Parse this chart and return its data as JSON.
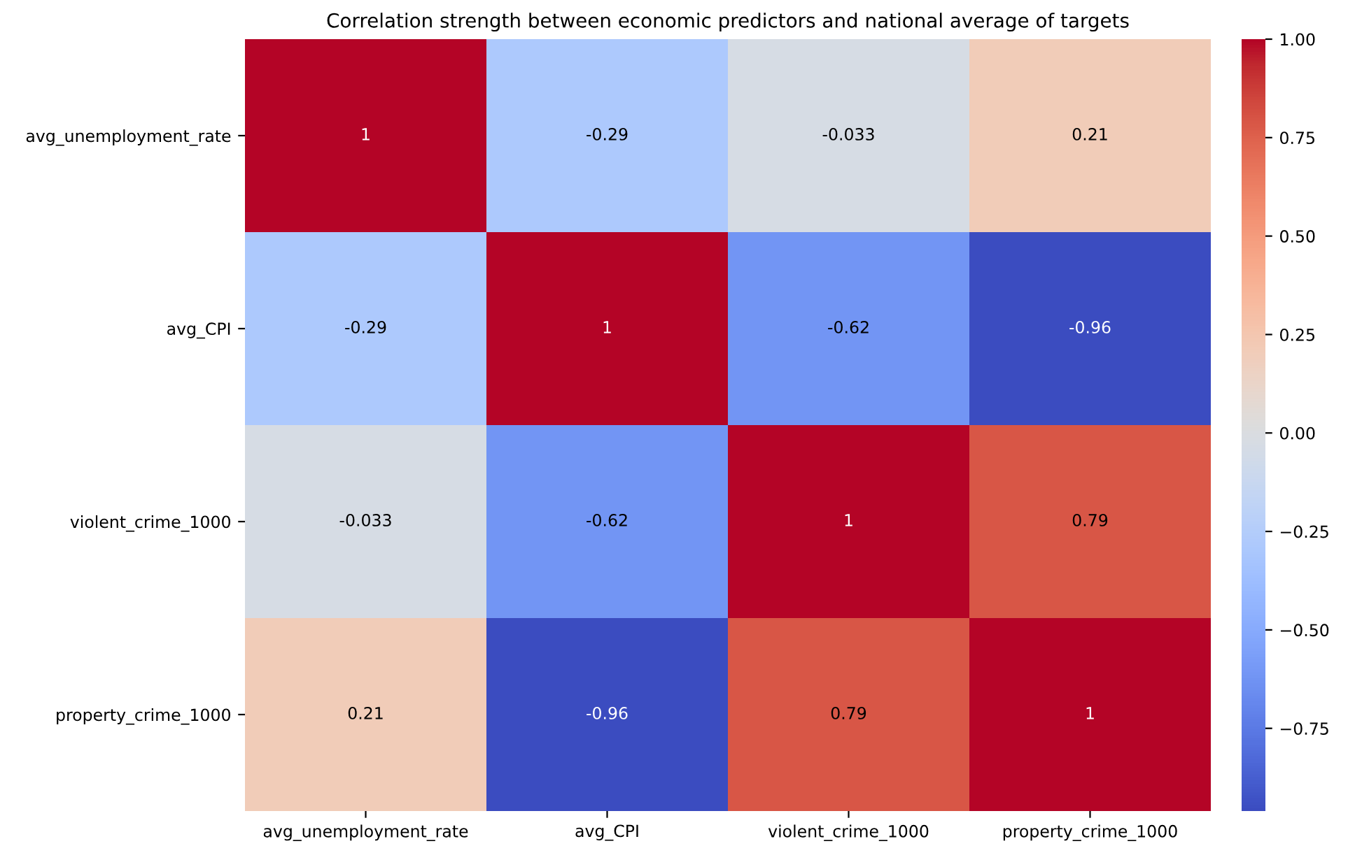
{
  "chart_data": {
    "type": "heatmap",
    "title": "Correlation strength between economic predictors and national average of targets",
    "categories": [
      "avg_unemployment_rate",
      "avg_CPI",
      "violent_crime_1000",
      "property_crime_1000"
    ],
    "y_categories": [
      "avg_unemployment_rate",
      "avg_CPI",
      "violent_crime_1000",
      "property_crime_1000"
    ],
    "cells": [
      [
        1,
        -0.29,
        -0.033,
        0.21
      ],
      [
        -0.29,
        1,
        -0.62,
        -0.96
      ],
      [
        -0.033,
        -0.62,
        1,
        0.79
      ],
      [
        0.21,
        -0.96,
        0.79,
        1
      ]
    ],
    "cell_labels": [
      [
        "1",
        "-0.29",
        "-0.033",
        "0.21"
      ],
      [
        "-0.29",
        "1",
        "-0.62",
        "-0.96"
      ],
      [
        "-0.033",
        "-0.62",
        "1",
        "0.79"
      ],
      [
        "0.21",
        "-0.96",
        "0.79",
        "1"
      ]
    ],
    "clim": [
      -0.96,
      1
    ],
    "cticks": [
      {
        "value": -0.75,
        "label": "−0.75"
      },
      {
        "value": -0.5,
        "label": "−0.50"
      },
      {
        "value": -0.25,
        "label": "−0.25"
      },
      {
        "value": 0,
        "label": "0.00"
      },
      {
        "value": 0.25,
        "label": "0.25"
      },
      {
        "value": 0.5,
        "label": "0.50"
      },
      {
        "value": 0.75,
        "label": "0.75"
      },
      {
        "value": 1,
        "label": "1.00"
      }
    ]
  }
}
